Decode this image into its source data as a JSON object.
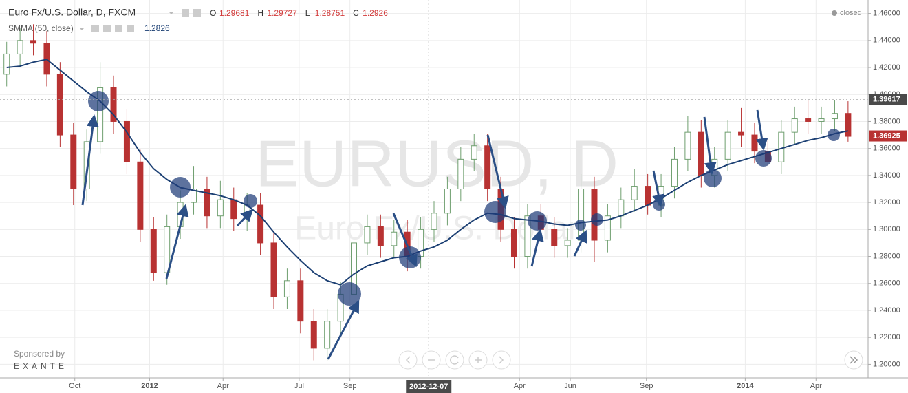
{
  "chart_data": {
    "type": "candlestick",
    "title": "Euro Fx/U.S. Dollar, D, FXCM",
    "readout": [
      {
        "label": "O",
        "value": 1.29681
      },
      {
        "label": "H",
        "value": 1.29727
      },
      {
        "label": "L",
        "value": 1.28751
      },
      {
        "label": "C",
        "value": 1.2926
      }
    ],
    "status": "closed",
    "watermark": {
      "symbol": "EURUSD, D",
      "description": "Euro Fx/U.S. Dollar"
    },
    "sponsor": {
      "text": "Sponsored by",
      "name": "EXANTE"
    },
    "x": [
      0,
      1,
      2,
      3,
      4,
      5,
      6,
      7,
      8,
      9,
      10,
      11,
      12,
      13,
      14,
      15,
      16,
      17,
      18,
      19,
      20,
      21,
      22,
      23,
      24,
      25,
      26,
      27,
      28,
      29,
      30,
      31,
      32,
      33,
      34,
      35,
      36,
      37,
      38,
      39,
      40,
      41,
      42,
      43,
      44,
      45,
      46,
      47,
      48,
      49,
      50,
      51,
      52,
      53,
      54,
      55,
      56,
      57,
      58,
      59,
      60,
      61,
      62,
      63
    ],
    "open": [
      1.415,
      1.43,
      1.44,
      1.438,
      1.415,
      1.37,
      1.33,
      1.365,
      1.405,
      1.38,
      1.35,
      1.3,
      1.268,
      1.302,
      1.32,
      1.33,
      1.31,
      1.322,
      1.308,
      1.318,
      1.29,
      1.25,
      1.262,
      1.232,
      1.212,
      1.232,
      1.252,
      1.29,
      1.302,
      1.288,
      1.298,
      1.28,
      1.3,
      1.312,
      1.33,
      1.352,
      1.362,
      1.33,
      1.3,
      1.28,
      1.31,
      1.3,
      1.288,
      1.292,
      1.33,
      1.292,
      1.31,
      1.322,
      1.332,
      1.318,
      1.332,
      1.352,
      1.372,
      1.34,
      1.352,
      1.372,
      1.37,
      1.358,
      1.35,
      1.372,
      1.382,
      1.38,
      1.382,
      1.386
    ],
    "high": [
      1.439,
      1.449,
      1.452,
      1.447,
      1.424,
      1.379,
      1.374,
      1.424,
      1.414,
      1.389,
      1.359,
      1.309,
      1.311,
      1.329,
      1.347,
      1.339,
      1.336,
      1.331,
      1.327,
      1.327,
      1.299,
      1.271,
      1.271,
      1.241,
      1.241,
      1.261,
      1.299,
      1.311,
      1.311,
      1.307,
      1.307,
      1.309,
      1.321,
      1.339,
      1.361,
      1.371,
      1.371,
      1.339,
      1.309,
      1.319,
      1.319,
      1.309,
      1.301,
      1.341,
      1.339,
      1.319,
      1.331,
      1.345,
      1.341,
      1.341,
      1.361,
      1.384,
      1.381,
      1.361,
      1.381,
      1.39,
      1.379,
      1.367,
      1.381,
      1.391,
      1.396,
      1.391,
      1.396,
      1.395
    ],
    "low": [
      1.406,
      1.421,
      1.429,
      1.406,
      1.361,
      1.318,
      1.321,
      1.356,
      1.371,
      1.341,
      1.291,
      1.262,
      1.259,
      1.293,
      1.311,
      1.301,
      1.301,
      1.299,
      1.299,
      1.281,
      1.241,
      1.241,
      1.223,
      1.203,
      1.203,
      1.223,
      1.243,
      1.281,
      1.279,
      1.279,
      1.269,
      1.271,
      1.291,
      1.303,
      1.321,
      1.343,
      1.321,
      1.291,
      1.271,
      1.271,
      1.291,
      1.279,
      1.279,
      1.283,
      1.276,
      1.283,
      1.301,
      1.313,
      1.311,
      1.309,
      1.323,
      1.343,
      1.331,
      1.331,
      1.343,
      1.361,
      1.349,
      1.347,
      1.341,
      1.363,
      1.371,
      1.371,
      1.373,
      1.365
    ],
    "close": [
      1.43,
      1.44,
      1.438,
      1.415,
      1.37,
      1.33,
      1.365,
      1.405,
      1.38,
      1.35,
      1.3,
      1.268,
      1.302,
      1.32,
      1.33,
      1.31,
      1.322,
      1.308,
      1.318,
      1.29,
      1.25,
      1.262,
      1.232,
      1.212,
      1.232,
      1.252,
      1.29,
      1.302,
      1.288,
      1.298,
      1.28,
      1.3,
      1.312,
      1.33,
      1.352,
      1.362,
      1.33,
      1.3,
      1.28,
      1.31,
      1.3,
      1.288,
      1.292,
      1.33,
      1.292,
      1.31,
      1.322,
      1.332,
      1.318,
      1.332,
      1.352,
      1.372,
      1.34,
      1.352,
      1.372,
      1.37,
      1.358,
      1.35,
      1.372,
      1.382,
      1.38,
      1.382,
      1.386,
      1.369
    ],
    "smma": {
      "name": "SMMA (50, close)",
      "readout": 1.2826,
      "color": "#1b3f73",
      "values": [
        1.42,
        1.421,
        1.424,
        1.426,
        1.418,
        1.41,
        1.402,
        1.395,
        1.385,
        1.372,
        1.357,
        1.345,
        1.337,
        1.331,
        1.329,
        1.327,
        1.325,
        1.322,
        1.318,
        1.31,
        1.298,
        1.287,
        1.277,
        1.268,
        1.262,
        1.259,
        1.267,
        1.273,
        1.276,
        1.279,
        1.28,
        1.284,
        1.287,
        1.292,
        1.3,
        1.307,
        1.312,
        1.311,
        1.308,
        1.307,
        1.306,
        1.304,
        1.303,
        1.305,
        1.306,
        1.307,
        1.31,
        1.314,
        1.318,
        1.323,
        1.329,
        1.335,
        1.34,
        1.344,
        1.348,
        1.351,
        1.354,
        1.357,
        1.36,
        1.363,
        1.366,
        1.368,
        1.371,
        1.373
      ]
    },
    "colors": {
      "up": "#6f9f6f",
      "down": "#b83232"
    },
    "xlim": [
      -0.5,
      64.5
    ],
    "xticks": [
      {
        "value": 5.1,
        "label": "Oct"
      },
      {
        "value": 10.7,
        "label": "2012"
      },
      {
        "value": 16.2,
        "label": "Apr"
      },
      {
        "value": 21.9,
        "label": "Jul"
      },
      {
        "value": 25.7,
        "label": "Sep"
      },
      {
        "value": 38.4,
        "label": "Apr"
      },
      {
        "value": 42.2,
        "label": "Jun"
      },
      {
        "value": 47.9,
        "label": "Sep"
      },
      {
        "value": 55.3,
        "label": "2014"
      },
      {
        "value": 60.6,
        "label": "Apr"
      }
    ],
    "ylim": [
      1.19,
      1.47
    ],
    "yticks": [
      {
        "value": 1.2,
        "label": "1.20000"
      },
      {
        "value": 1.22,
        "label": "1.22000"
      },
      {
        "value": 1.24,
        "label": "1.24000"
      },
      {
        "value": 1.26,
        "label": "1.26000"
      },
      {
        "value": 1.28,
        "label": "1.28000"
      },
      {
        "value": 1.3,
        "label": "1.30000"
      },
      {
        "value": 1.32,
        "label": "1.32000"
      },
      {
        "value": 1.34,
        "label": "1.34000"
      },
      {
        "value": 1.36,
        "label": "1.36000"
      },
      {
        "value": 1.38,
        "label": "1.38000"
      },
      {
        "value": 1.4,
        "label": "1.40000"
      },
      {
        "value": 1.42,
        "label": "1.42000"
      },
      {
        "value": 1.44,
        "label": "1.44000"
      },
      {
        "value": 1.46,
        "label": "1.46000"
      }
    ],
    "crosshair": {
      "x": 31.6,
      "label": "2012-12-07",
      "price": 1.39617
    },
    "last_price": 1.36925,
    "grid": true
  }
}
